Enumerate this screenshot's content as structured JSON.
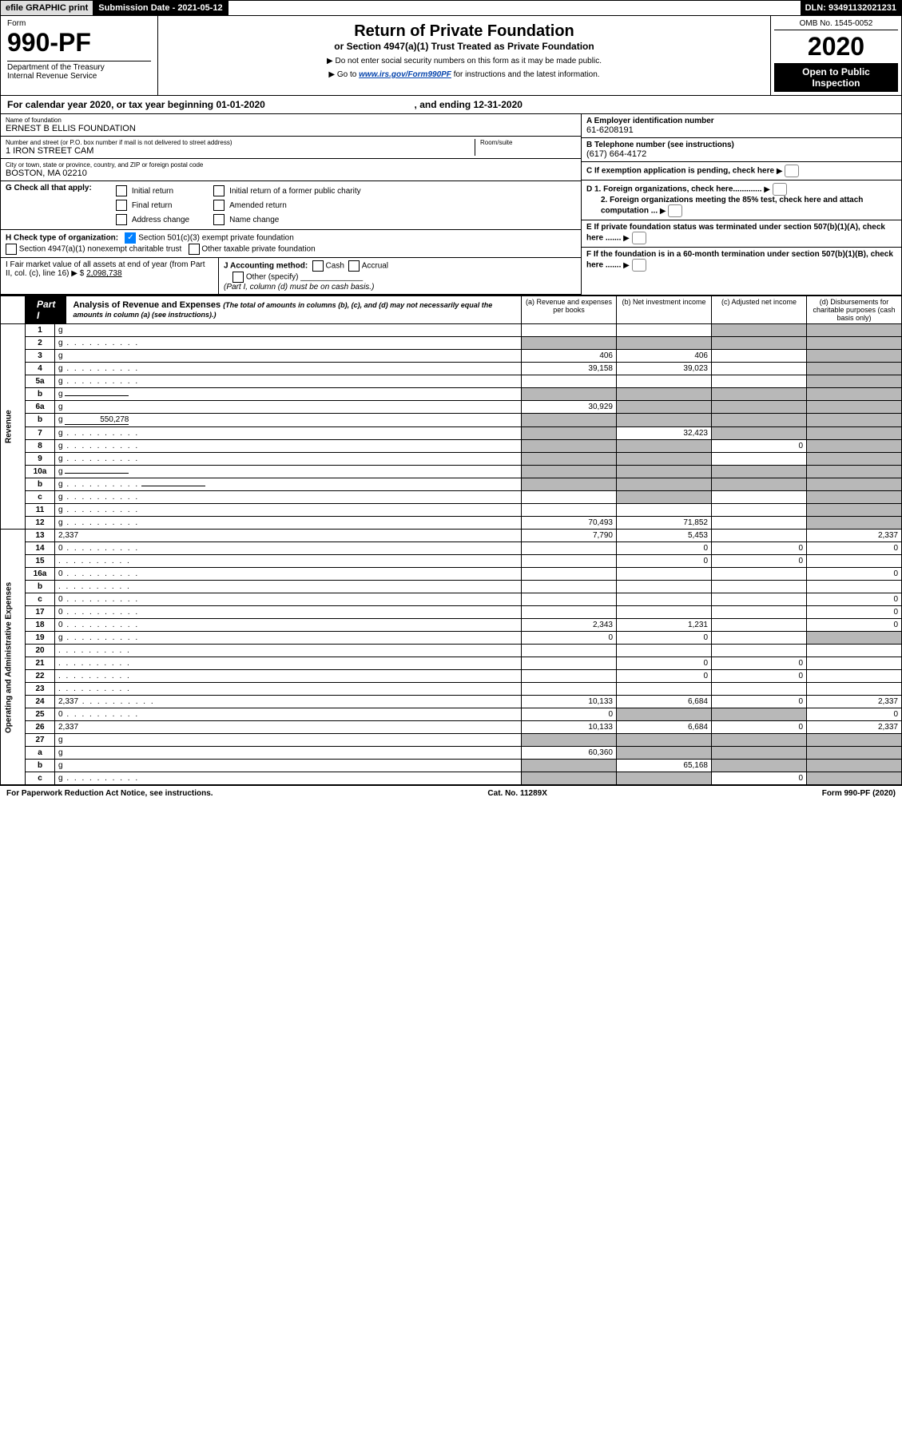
{
  "topbar": {
    "efile": "efile GRAPHIC print",
    "submission": "Submission Date - 2021-05-12",
    "dln": "DLN: 93491132021231"
  },
  "header": {
    "form_label": "Form",
    "form_number": "990-PF",
    "dept1": "Department of the Treasury",
    "dept2": "Internal Revenue Service",
    "title": "Return of Private Foundation",
    "subtitle": "or Section 4947(a)(1) Trust Treated as Private Foundation",
    "instr1": "▶ Do not enter social security numbers on this form as it may be made public.",
    "instr2_pre": "▶ Go to ",
    "instr2_link": "www.irs.gov/Form990PF",
    "instr2_post": " for instructions and the latest information.",
    "omb": "OMB No. 1545-0052",
    "year": "2020",
    "open": "Open to Public Inspection"
  },
  "cal_year": {
    "pre": "For calendar year 2020, or tax year beginning ",
    "begin": "01-01-2020",
    "mid": " , and ending ",
    "end": "12-31-2020"
  },
  "entity": {
    "name_label": "Name of foundation",
    "name": "ERNEST B ELLIS FOUNDATION",
    "addr_label": "Number and street (or P.O. box number if mail is not delivered to street address)",
    "addr": "1 IRON STREET CAM",
    "room_label": "Room/suite",
    "city_label": "City or town, state or province, country, and ZIP or foreign postal code",
    "city": "BOSTON, MA  02210",
    "ein_label": "A Employer identification number",
    "ein": "61-6208191",
    "phone_label": "B Telephone number (see instructions)",
    "phone": "(617) 664-4172",
    "c_label": "C If exemption application is pending, check here",
    "d1": "D 1. Foreign organizations, check here.............",
    "d2": "2. Foreign organizations meeting the 85% test, check here and attach computation ...",
    "e_label": "E  If private foundation status was terminated under section 507(b)(1)(A), check here .......",
    "f_label": "F  If the foundation is in a 60-month termination under section 507(b)(1)(B), check here .......",
    "g_label": "G Check all that apply:",
    "g_opts": [
      "Initial return",
      "Final return",
      "Address change",
      "Initial return of a former public charity",
      "Amended return",
      "Name change"
    ],
    "h_label": "H Check type of organization:",
    "h1": "Section 501(c)(3) exempt private foundation",
    "h2": "Section 4947(a)(1) nonexempt charitable trust",
    "h3": "Other taxable private foundation",
    "i_label": "I Fair market value of all assets at end of year (from Part II, col. (c), line 16) ▶ $",
    "i_val": "2,098,738",
    "j_label": "J Accounting method:",
    "j_opts": [
      "Cash",
      "Accrual"
    ],
    "j_other": "Other (specify)",
    "j_note": "(Part I, column (d) must be on cash basis.)"
  },
  "part1": {
    "tab": "Part I",
    "title": "Analysis of Revenue and Expenses",
    "desc": "(The total of amounts in columns (b), (c), and (d) may not necessarily equal the amounts in column (a) (see instructions).)",
    "cols": {
      "a": "(a)   Revenue and expenses per books",
      "b": "(b)    Net investment income",
      "c": "(c)    Adjusted net income",
      "d": "(d)  Disbursements for charitable purposes (cash basis only)"
    },
    "side_rev": "Revenue",
    "side_exp": "Operating and Administrative Expenses"
  },
  "rows": [
    {
      "n": "1",
      "d": "g",
      "a": "",
      "b": "",
      "c": "g"
    },
    {
      "n": "2",
      "d": "g",
      "dots": 1,
      "a": "g",
      "b": "g",
      "c": "g"
    },
    {
      "n": "3",
      "d": "g",
      "a": "406",
      "b": "406",
      "c": ""
    },
    {
      "n": "4",
      "d": "g",
      "dots": 1,
      "a": "39,158",
      "b": "39,023",
      "c": ""
    },
    {
      "n": "5a",
      "d": "g",
      "dots": 1,
      "a": "",
      "b": "",
      "c": ""
    },
    {
      "n": "b",
      "d": "g",
      "line": 1,
      "a": "g",
      "b": "g",
      "c": "g"
    },
    {
      "n": "6a",
      "d": "g",
      "a": "30,929",
      "b": "g",
      "c": "g"
    },
    {
      "n": "b",
      "d": "g",
      "inline": "550,278",
      "a": "g",
      "b": "g",
      "c": "g"
    },
    {
      "n": "7",
      "d": "g",
      "dots": 1,
      "a": "g",
      "b": "32,423",
      "c": "g"
    },
    {
      "n": "8",
      "d": "g",
      "dots": 1,
      "a": "g",
      "b": "g",
      "c": "0"
    },
    {
      "n": "9",
      "d": "g",
      "dots": 1,
      "a": "g",
      "b": "g",
      "c": ""
    },
    {
      "n": "10a",
      "d": "g",
      "line": 1,
      "a": "g",
      "b": "g",
      "c": "g"
    },
    {
      "n": "b",
      "d": "g",
      "dots": 1,
      "line": 1,
      "a": "g",
      "b": "g",
      "c": "g"
    },
    {
      "n": "c",
      "d": "g",
      "dots": 1,
      "a": "",
      "b": "g",
      "c": ""
    },
    {
      "n": "11",
      "d": "g",
      "dots": 1,
      "a": "",
      "b": "",
      "c": ""
    },
    {
      "n": "12",
      "d": "g",
      "dots": 1,
      "a": "70,493",
      "b": "71,852",
      "c": ""
    },
    {
      "n": "13",
      "d": "2,337",
      "a": "7,790",
      "b": "5,453",
      "c": ""
    },
    {
      "n": "14",
      "d": "0",
      "dots": 1,
      "a": "",
      "b": "0",
      "c": "0"
    },
    {
      "n": "15",
      "d": "",
      "dots": 1,
      "a": "",
      "b": "0",
      "c": "0"
    },
    {
      "n": "16a",
      "d": "0",
      "dots": 1,
      "a": "",
      "b": "",
      "c": ""
    },
    {
      "n": "b",
      "d": "",
      "dots": 1,
      "a": "",
      "b": "",
      "c": ""
    },
    {
      "n": "c",
      "d": "0",
      "dots": 1,
      "a": "",
      "b": "",
      "c": ""
    },
    {
      "n": "17",
      "d": "0",
      "dots": 1,
      "a": "",
      "b": "",
      "c": ""
    },
    {
      "n": "18",
      "d": "0",
      "dots": 1,
      "a": "2,343",
      "b": "1,231",
      "c": ""
    },
    {
      "n": "19",
      "d": "g",
      "dots": 1,
      "a": "0",
      "b": "0",
      "c": ""
    },
    {
      "n": "20",
      "d": "",
      "dots": 1,
      "a": "",
      "b": "",
      "c": ""
    },
    {
      "n": "21",
      "d": "",
      "dots": 1,
      "a": "",
      "b": "0",
      "c": "0"
    },
    {
      "n": "22",
      "d": "",
      "dots": 1,
      "a": "",
      "b": "0",
      "c": "0"
    },
    {
      "n": "23",
      "d": "",
      "dots": 1,
      "a": "",
      "b": "",
      "c": ""
    },
    {
      "n": "24",
      "d": "2,337",
      "dots": 1,
      "a": "10,133",
      "b": "6,684",
      "c": "0"
    },
    {
      "n": "25",
      "d": "0",
      "dots": 1,
      "a": "0",
      "b": "g",
      "c": "g"
    },
    {
      "n": "26",
      "d": "2,337",
      "a": "10,133",
      "b": "6,684",
      "c": "0"
    },
    {
      "n": "27",
      "d": "g",
      "a": "g",
      "b": "g",
      "c": "g"
    },
    {
      "n": "a",
      "d": "g",
      "a": "60,360",
      "b": "g",
      "c": "g"
    },
    {
      "n": "b",
      "d": "g",
      "a": "g",
      "b": "65,168",
      "c": "g"
    },
    {
      "n": "c",
      "d": "g",
      "dots": 1,
      "a": "g",
      "b": "g",
      "c": "0"
    }
  ],
  "footer": {
    "left": "For Paperwork Reduction Act Notice, see instructions.",
    "mid": "Cat. No. 11289X",
    "right": "Form 990-PF (2020)"
  }
}
